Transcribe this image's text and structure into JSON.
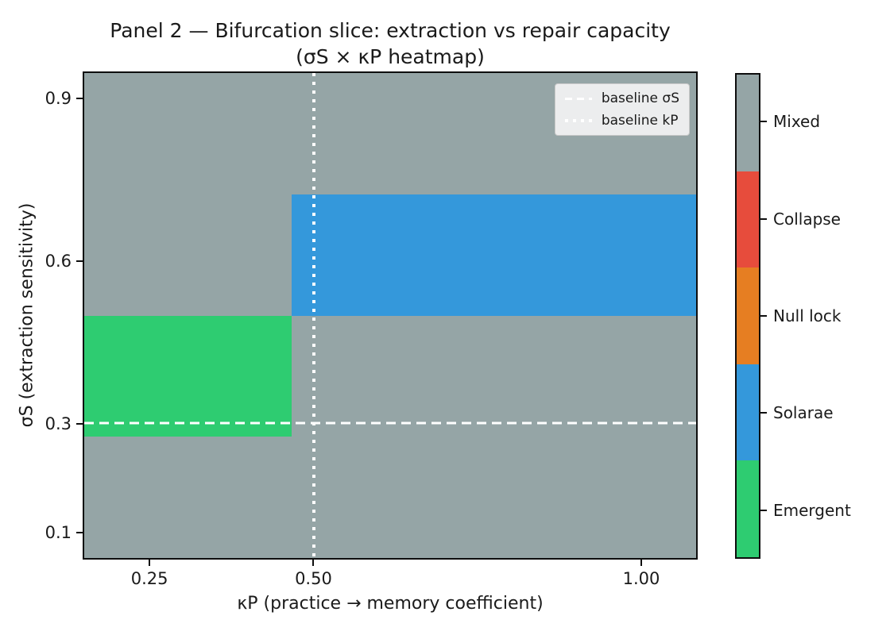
{
  "figure": {
    "title_line1": "Panel 2 — Bifurcation slice: extraction vs repair capacity",
    "title_line2": "(σS × κP heatmap)"
  },
  "legend": {
    "items": [
      {
        "label": "baseline σS",
        "style": "dashed",
        "color": "#ffffff"
      },
      {
        "label": "baseline kP",
        "style": "dotted",
        "color": "#ffffff"
      }
    ]
  },
  "colorbar": {
    "segments": [
      {
        "label": "Mixed",
        "color": "#95a5a6"
      },
      {
        "label": "Collapse",
        "color": "#e74c3c"
      },
      {
        "label": "Null lock",
        "color": "#e67e22"
      },
      {
        "label": "Solarae",
        "color": "#3498db"
      },
      {
        "label": "Emergent",
        "color": "#2ecc71"
      }
    ]
  },
  "chart_data": {
    "type": "heatmap",
    "title": "Panel 2 — Bifurcation slice: extraction vs repair capacity (σS × κP heatmap)",
    "xlabel": "κP (practice → memory coefficient)",
    "ylabel": "σS (extraction sensitivity)",
    "xlim": [
      0.148,
      1.086
    ],
    "ylim": [
      0.05,
      0.95
    ],
    "x_ticks": [
      {
        "value": 0.25,
        "label": "0.25"
      },
      {
        "value": 0.5,
        "label": "0.50"
      },
      {
        "value": 1.0,
        "label": "1.00"
      }
    ],
    "y_ticks": [
      {
        "value": 0.9,
        "label": "0.9"
      },
      {
        "value": 0.6,
        "label": "0.6"
      },
      {
        "value": 0.3,
        "label": "0.3"
      },
      {
        "value": 0.1,
        "label": "0.1"
      }
    ],
    "categories": [
      "Mixed",
      "Collapse",
      "Null lock",
      "Solarae",
      "Emergent"
    ],
    "category_colors": {
      "Mixed": "#95a5a6",
      "Collapse": "#e74c3c",
      "Null lock": "#e67e22",
      "Solarae": "#3498db",
      "Emergent": "#2ecc71"
    },
    "background_category": "Mixed",
    "background_color": "#95a5a6",
    "row_edges_sigmaS": [
      0.05,
      0.275,
      0.5,
      0.725,
      0.95
    ],
    "regions": [
      {
        "category": "Solarae",
        "color": "#3498db",
        "x0": 0.466,
        "x1": 1.086,
        "y0": 0.5,
        "y1": 0.725
      },
      {
        "category": "Emergent",
        "color": "#2ecc71",
        "x0": 0.148,
        "x1": 0.466,
        "y0": 0.275,
        "y1": 0.5
      }
    ],
    "baselines": [
      {
        "name": "baseline σS",
        "axis": "y",
        "value": 0.3,
        "style": "dashed",
        "color": "#ffffff"
      },
      {
        "name": "baseline kP",
        "axis": "x",
        "value": 0.5,
        "style": "dotted",
        "color": "#ffffff"
      }
    ],
    "legend_position": "upper right",
    "grid": false
  }
}
